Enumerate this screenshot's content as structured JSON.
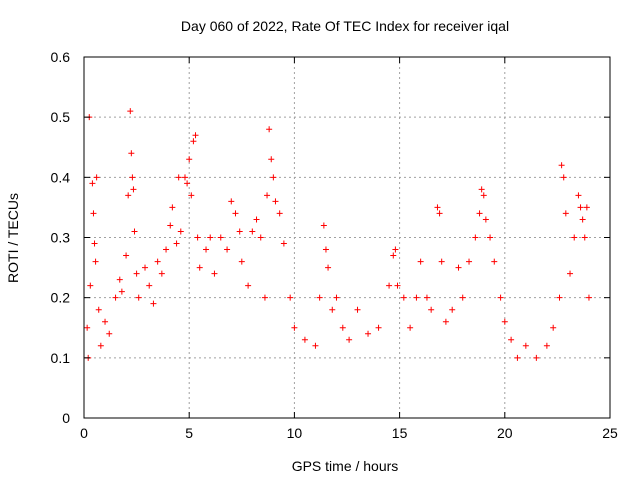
{
  "chart_data": {
    "type": "scatter",
    "title": "Day 060 of 2022, Rate Of TEC Index for receiver iqal",
    "xlabel": "GPS time / hours",
    "ylabel": "ROTI / TECUs",
    "xlim": [
      0,
      25
    ],
    "ylim": [
      0,
      0.6
    ],
    "xticks": [
      "0",
      "5",
      "10",
      "15",
      "20",
      "25"
    ],
    "yticks": [
      "0",
      "0.1",
      "0.2",
      "0.3",
      "0.4",
      "0.5",
      "0.6"
    ],
    "grid": true,
    "marker": "+",
    "color": "#ff0000",
    "series": [
      {
        "points": [
          [
            0.25,
            0.5
          ],
          [
            0.4,
            0.39
          ],
          [
            0.45,
            0.34
          ],
          [
            0.5,
            0.29
          ],
          [
            0.55,
            0.26
          ],
          [
            0.6,
            0.4
          ],
          [
            0.3,
            0.22
          ],
          [
            0.7,
            0.18
          ],
          [
            0.15,
            0.15
          ],
          [
            0.2,
            0.1
          ],
          [
            0.8,
            0.12
          ],
          [
            1.0,
            0.16
          ],
          [
            1.2,
            0.14
          ],
          [
            1.5,
            0.2
          ],
          [
            1.7,
            0.23
          ],
          [
            1.8,
            0.21
          ],
          [
            2.0,
            0.27
          ],
          [
            2.1,
            0.37
          ],
          [
            2.2,
            0.51
          ],
          [
            2.25,
            0.44
          ],
          [
            2.3,
            0.4
          ],
          [
            2.35,
            0.38
          ],
          [
            2.4,
            0.31
          ],
          [
            2.5,
            0.24
          ],
          [
            2.6,
            0.2
          ],
          [
            2.9,
            0.25
          ],
          [
            3.1,
            0.22
          ],
          [
            3.3,
            0.19
          ],
          [
            3.5,
            0.26
          ],
          [
            3.7,
            0.24
          ],
          [
            3.9,
            0.28
          ],
          [
            4.1,
            0.32
          ],
          [
            4.2,
            0.35
          ],
          [
            4.4,
            0.29
          ],
          [
            4.5,
            0.4
          ],
          [
            4.6,
            0.31
          ],
          [
            4.8,
            0.4
          ],
          [
            4.9,
            0.39
          ],
          [
            5.0,
            0.43
          ],
          [
            5.1,
            0.37
          ],
          [
            5.2,
            0.46
          ],
          [
            5.3,
            0.47
          ],
          [
            5.4,
            0.3
          ],
          [
            5.5,
            0.25
          ],
          [
            5.8,
            0.28
          ],
          [
            6.0,
            0.3
          ],
          [
            6.2,
            0.24
          ],
          [
            6.5,
            0.3
          ],
          [
            6.8,
            0.28
          ],
          [
            7.0,
            0.36
          ],
          [
            7.2,
            0.34
          ],
          [
            7.4,
            0.31
          ],
          [
            7.5,
            0.26
          ],
          [
            7.8,
            0.22
          ],
          [
            8.0,
            0.31
          ],
          [
            8.2,
            0.33
          ],
          [
            8.4,
            0.3
          ],
          [
            8.6,
            0.2
          ],
          [
            8.7,
            0.37
          ],
          [
            8.8,
            0.48
          ],
          [
            8.9,
            0.43
          ],
          [
            9.0,
            0.4
          ],
          [
            9.1,
            0.36
          ],
          [
            9.3,
            0.34
          ],
          [
            9.5,
            0.29
          ],
          [
            9.8,
            0.2
          ],
          [
            10.0,
            0.15
          ],
          [
            10.5,
            0.13
          ],
          [
            11.0,
            0.12
          ],
          [
            11.2,
            0.2
          ],
          [
            11.4,
            0.32
          ],
          [
            11.5,
            0.28
          ],
          [
            11.6,
            0.25
          ],
          [
            11.8,
            0.18
          ],
          [
            12.0,
            0.2
          ],
          [
            12.3,
            0.15
          ],
          [
            12.6,
            0.13
          ],
          [
            13.0,
            0.18
          ],
          [
            13.5,
            0.14
          ],
          [
            14.0,
            0.15
          ],
          [
            14.5,
            0.22
          ],
          [
            14.7,
            0.27
          ],
          [
            14.8,
            0.28
          ],
          [
            14.9,
            0.22
          ],
          [
            15.2,
            0.2
          ],
          [
            15.5,
            0.15
          ],
          [
            15.8,
            0.2
          ],
          [
            16.0,
            0.26
          ],
          [
            16.3,
            0.2
          ],
          [
            16.5,
            0.18
          ],
          [
            16.8,
            0.35
          ],
          [
            16.9,
            0.34
          ],
          [
            17.0,
            0.26
          ],
          [
            17.2,
            0.16
          ],
          [
            17.5,
            0.18
          ],
          [
            17.8,
            0.25
          ],
          [
            18.0,
            0.2
          ],
          [
            18.3,
            0.26
          ],
          [
            18.6,
            0.3
          ],
          [
            18.8,
            0.34
          ],
          [
            18.9,
            0.38
          ],
          [
            19.0,
            0.37
          ],
          [
            19.1,
            0.33
          ],
          [
            19.3,
            0.3
          ],
          [
            19.5,
            0.26
          ],
          [
            19.8,
            0.2
          ],
          [
            20.0,
            0.16
          ],
          [
            20.3,
            0.13
          ],
          [
            20.6,
            0.1
          ],
          [
            21.0,
            0.12
          ],
          [
            21.5,
            0.1
          ],
          [
            22.0,
            0.12
          ],
          [
            22.3,
            0.15
          ],
          [
            22.6,
            0.2
          ],
          [
            22.7,
            0.42
          ],
          [
            22.8,
            0.4
          ],
          [
            22.9,
            0.34
          ],
          [
            23.1,
            0.24
          ],
          [
            23.3,
            0.3
          ],
          [
            23.5,
            0.37
          ],
          [
            23.6,
            0.35
          ],
          [
            23.7,
            0.33
          ],
          [
            23.8,
            0.3
          ],
          [
            23.9,
            0.35
          ],
          [
            24.0,
            0.2
          ]
        ]
      }
    ]
  }
}
